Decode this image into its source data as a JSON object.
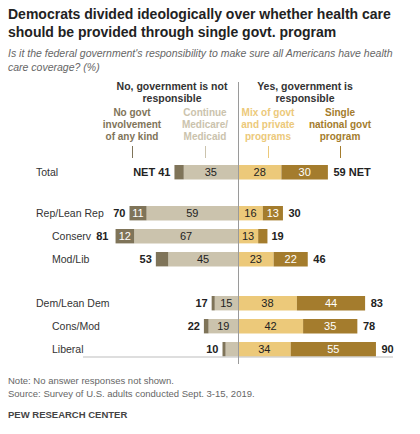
{
  "chart_data": {
    "type": "bar",
    "title": "Democrats divided ideologically over whether health care should be provided through single govt. program",
    "subtitle": "Is it the federal government's responsibility to make sure all Americans have health care coverage? (%)",
    "orientation": "horizontal",
    "stacked": true,
    "data_labels": true,
    "tick_labels": false,
    "xlim": [
      0,
      100
    ],
    "categories": [
      "Total",
      "Rep/Lean Rep",
      "Conserv",
      "Mod/Lib",
      "Dem/Lean Dem",
      "Cons/Mod",
      "Liberal"
    ],
    "net_label": "NET",
    "groups": [
      {
        "name": "No, government is not responsible",
        "net": [
          41,
          70,
          81,
          53,
          17,
          22,
          10
        ],
        "series": [
          {
            "name": "No govt involvement of any kind",
            "color": "#7f7459",
            "values": [
              6,
              11,
              12,
              8,
              2,
              3,
              2
            ],
            "value_labels": [
              null,
              "11",
              "12",
              null,
              null,
              null,
              null
            ]
          },
          {
            "name": "Continue Medicare/ Medicaid",
            "color": "#cbc3ad",
            "values": [
              35,
              59,
              67,
              45,
              15,
              19,
              8
            ],
            "value_labels": [
              "35",
              "59",
              "67",
              "45",
              "15",
              "19",
              null
            ]
          }
        ]
      },
      {
        "name": "Yes, government is responsible",
        "net": [
          59,
          30,
          19,
          46,
          83,
          78,
          90
        ],
        "series": [
          {
            "name": "Mix of govt and private programs",
            "color": "#ecc97a",
            "values": [
              28,
              16,
              13,
              23,
              38,
              42,
              34
            ],
            "value_labels": [
              "28",
              "16",
              "13",
              "23",
              "38",
              "42",
              "34"
            ]
          },
          {
            "name": "Single national govt program",
            "color": "#a47c2d",
            "values": [
              30,
              13,
              6,
              22,
              44,
              35,
              55
            ],
            "value_labels": [
              "30",
              "13",
              null,
              "22",
              "44",
              "35",
              "55"
            ]
          }
        ]
      }
    ],
    "note": "Note: No answer responses not shown.",
    "source": "Source: Survey of U.S. adults conducted Sept. 3-15, 2019.",
    "footer": "PEW RESEARCH CENTER"
  }
}
